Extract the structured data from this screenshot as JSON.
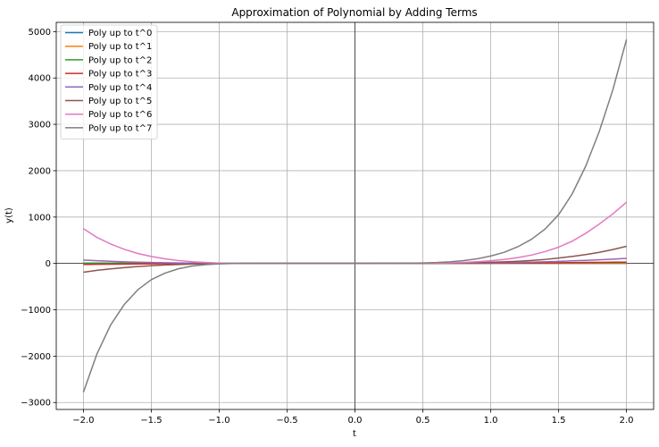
{
  "chart_data": {
    "type": "line",
    "title": "Approximation of Polynomial by Adding Terms",
    "xlabel": "t",
    "ylabel": "y(t)",
    "xlim": [
      -2.2,
      2.2
    ],
    "ylim": [
      -3150,
      5200
    ],
    "x_ticks": [
      -2.0,
      -1.5,
      -1.0,
      -0.5,
      0.0,
      0.5,
      1.0,
      1.5,
      2.0
    ],
    "x_tick_labels": [
      "−2.0",
      "−1.5",
      "−1.0",
      "−0.5",
      "0.0",
      "0.5",
      "1.0",
      "1.5",
      "2.0"
    ],
    "y_ticks": [
      -3000,
      -2000,
      -1000,
      0,
      1000,
      2000,
      3000,
      4000,
      5000
    ],
    "y_tick_labels": [
      "−3000",
      "−2000",
      "−1000",
      "0",
      "1000",
      "2000",
      "3000",
      "4000",
      "5000"
    ],
    "grid": true,
    "legend_position": "top-left",
    "x": [
      -2.0,
      -1.9,
      -1.8,
      -1.7,
      -1.6,
      -1.5,
      -1.4,
      -1.3,
      -1.2,
      -1.1,
      -1.0,
      -0.9,
      -0.8,
      -0.7,
      -0.6,
      -0.5,
      -0.4,
      -0.3,
      -0.2,
      -0.1,
      0.0,
      0.1,
      0.2,
      0.3,
      0.4,
      0.5,
      0.6,
      0.7,
      0.8,
      0.9,
      1.0,
      1.1,
      1.2,
      1.3,
      1.4,
      1.5,
      1.6,
      1.7,
      1.8,
      1.9,
      2.0
    ],
    "series": [
      {
        "name": "Poly up to t^0",
        "color": "#1f77b4",
        "values": [
          1,
          1,
          1,
          1,
          1,
          1,
          1,
          1,
          1,
          1,
          1,
          1,
          1,
          1,
          1,
          1,
          1,
          1,
          1,
          1,
          1,
          1,
          1,
          1,
          1,
          1,
          1,
          1,
          1,
          1,
          1,
          1,
          1,
          1,
          1,
          1,
          1,
          1,
          1,
          1,
          1
        ]
      },
      {
        "name": "Poly up to t^1",
        "color": "#ff7f0e",
        "values": [
          -3,
          -2.8,
          -2.6,
          -2.4,
          -2.2,
          -2,
          -1.8,
          -1.6,
          -1.4,
          -1.2,
          -1,
          -0.8,
          -0.6,
          -0.4,
          -0.2,
          0,
          0.2,
          0.4,
          0.6,
          0.8,
          1,
          1.2,
          1.4,
          1.6,
          1.8,
          2,
          2.2,
          2.4,
          2.6,
          2.8,
          3,
          3.2,
          3.4,
          3.6,
          3.8,
          4,
          4.2,
          4.4,
          4.6,
          4.8,
          5
        ]
      },
      {
        "name": "Poly up to t^2",
        "color": "#2ca02c",
        "values": [
          9,
          8.03,
          7.12,
          6.27,
          5.48,
          4.75,
          4.08,
          3.47,
          2.92,
          2.43,
          2,
          1.63,
          1.32,
          1.07,
          0.88,
          0.75,
          0.68,
          0.67,
          0.72,
          0.83,
          1,
          1.23,
          1.52,
          1.87,
          2.28,
          2.75,
          3.28,
          3.87,
          4.52,
          5.23,
          6,
          6.83,
          7.72,
          8.67,
          9.68,
          10.75,
          11.88,
          13.07,
          14.32,
          15.63,
          17
        ]
      },
      {
        "name": "Poly up to t^3",
        "color": "#d62728",
        "values": [
          -23,
          -19.4,
          -16.2,
          -13.4,
          -11,
          -8.8,
          -7.1,
          -5.6,
          -4.4,
          -3.4,
          -2.5,
          -1.8,
          -1.2,
          -0.6,
          -0.2,
          0,
          0.2,
          0.5,
          0.7,
          0.9,
          1,
          1.2,
          1.5,
          1.9,
          2.3,
          2.9,
          3.5,
          4.2,
          5.1,
          6.2,
          7,
          8,
          9.3,
          11,
          13.2,
          15.8,
          18.4,
          21,
          23.4,
          25.8,
          28
        ]
      },
      {
        "name": "Poly up to t^4",
        "color": "#9467bd",
        "values": [
          73,
          58,
          45.3,
          34.9,
          26.5,
          19.7,
          14.5,
          10.4,
          7.3,
          4.9,
          3,
          1.7,
          0.8,
          0.3,
          0.1,
          0,
          0.1,
          0.3,
          0.7,
          0.9,
          1,
          1.2,
          1.5,
          2,
          2.7,
          3.5,
          4.6,
          6,
          7.8,
          10.1,
          13,
          16.8,
          21.5,
          27.4,
          35.1,
          45,
          55.3,
          66.6,
          78.8,
          92.7,
          110
        ]
      },
      {
        "name": "Poly up to t^5",
        "color": "#8c564b",
        "values": [
          -190,
          -150,
          -118,
          -91,
          -68,
          -49,
          -34,
          -22.6,
          -14,
          -8,
          -4,
          -1.6,
          -0.4,
          0,
          0.1,
          0.1,
          0.2,
          0.3,
          0.7,
          0.9,
          1,
          1.2,
          1.5,
          2,
          2.7,
          3.6,
          5,
          7.6,
          11.5,
          17.1,
          25,
          34,
          46,
          63,
          86,
          117,
          150,
          190,
          240,
          300,
          370
        ]
      },
      {
        "name": "Poly up to t^6",
        "color": "#e377c2",
        "values": [
          750,
          560,
          420,
          305,
          215,
          150,
          100,
          62,
          36,
          19,
          8,
          3,
          1,
          0.5,
          0.3,
          0.2,
          0.2,
          0.3,
          0.7,
          0.9,
          1,
          1.2,
          1.5,
          2,
          2.9,
          4.5,
          7.5,
          13,
          22,
          37,
          58,
          85,
          125,
          180,
          255,
          350,
          480,
          650,
          850,
          1070,
          1320
        ]
      },
      {
        "name": "Poly up to t^7",
        "color": "#7f7f7f",
        "values": [
          -2780,
          -1950,
          -1330,
          -890,
          -570,
          -350,
          -210,
          -115,
          -57,
          -25,
          -9,
          -2.5,
          -0.3,
          0,
          0.1,
          0.2,
          0.2,
          0.3,
          0.7,
          0.9,
          1,
          1.3,
          1.8,
          3,
          5,
          10,
          19,
          35,
          60,
          100,
          160,
          240,
          360,
          520,
          740,
          1050,
          1500,
          2100,
          2850,
          3750,
          4830
        ]
      }
    ]
  }
}
